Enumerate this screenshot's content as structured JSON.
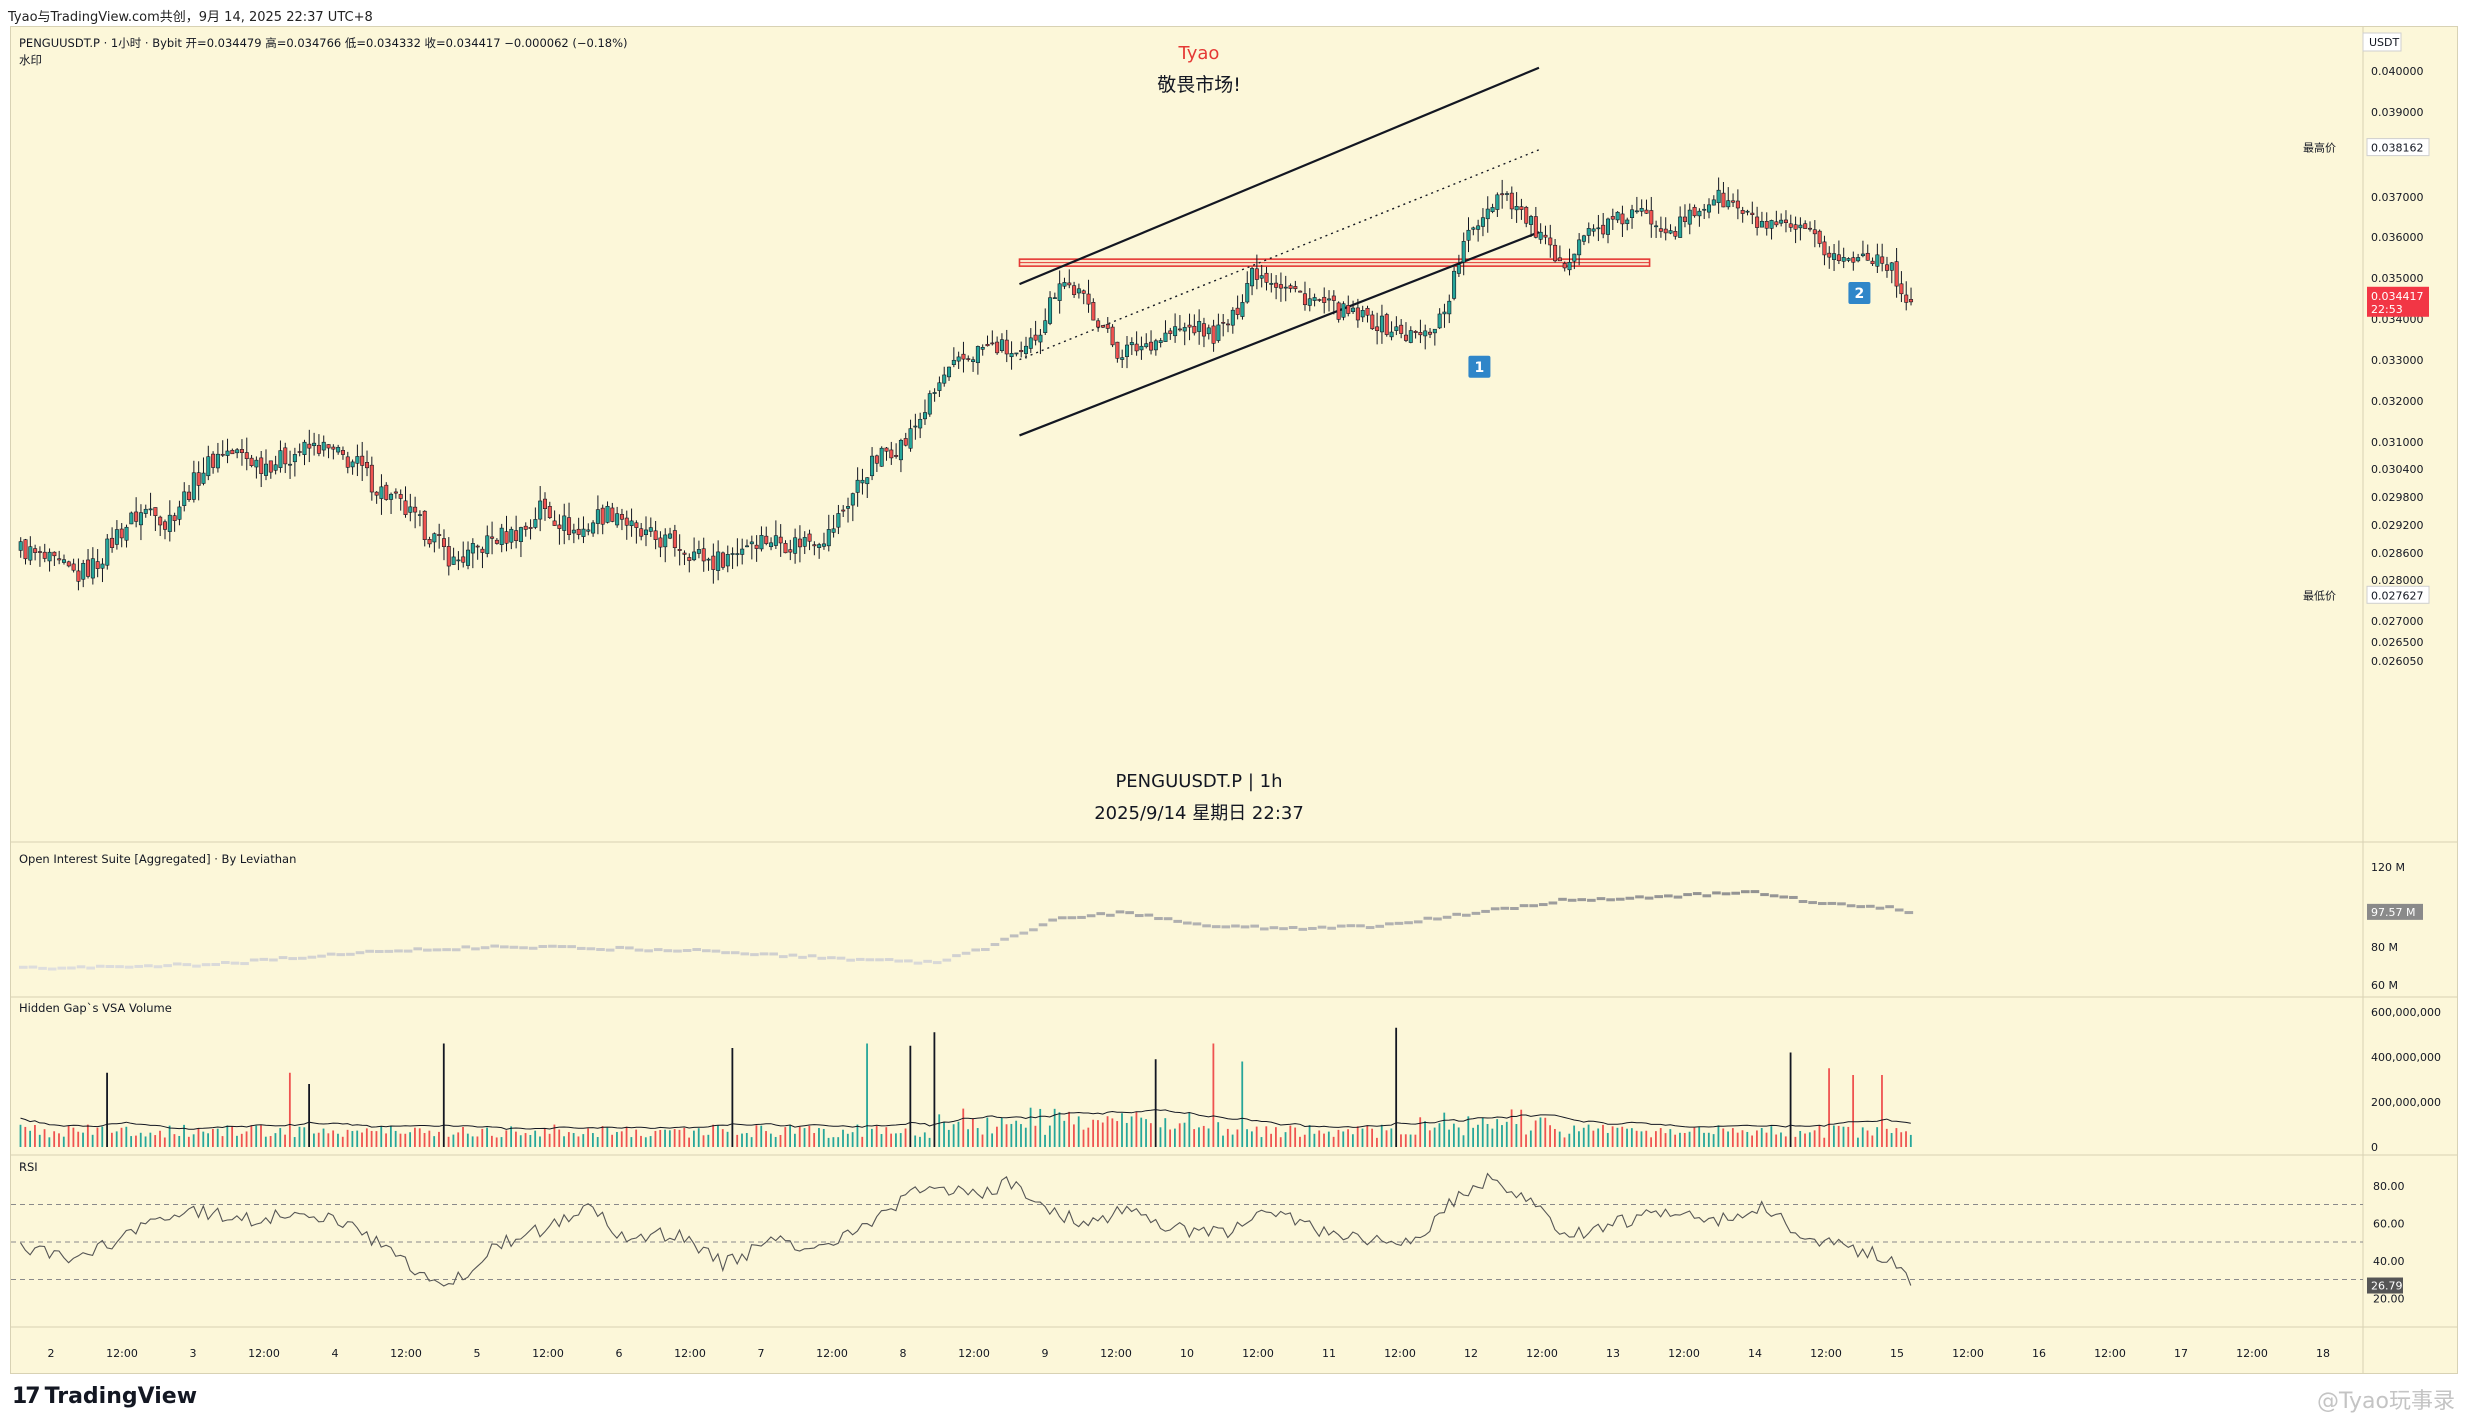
{
  "header": {
    "share_text": "Tyao⁠⁠与TradingView.com共创，9月 14, 2025 22:37 UTC+8"
  },
  "legend": {
    "symbol_line": "PENGUUSDT.P · 1小时 · Bybit  开=0.034479  高=0.034766  低=0.034332  收=0.034417  −0.000062 (−0.18%)",
    "watermark_label": "水印",
    "author": "Tyao",
    "slogan": "敬畏市场!",
    "center_title": "PENGUUSDT.P | 1h",
    "center_date": "2025/9/14 星期日 22:37"
  },
  "colors": {
    "up": "#26a69a",
    "down": "#ef5350",
    "background": "#fcf7d9",
    "zone_red": "#e53935",
    "marker_blue": "#2f86c9",
    "price_tag_red": "#f23645"
  },
  "price_axis": {
    "unit": "USDT",
    "ticks": [
      "0.040000",
      "0.039000",
      "0.037000",
      "0.036000",
      "0.035000",
      "0.034000",
      "0.033000",
      "0.032000",
      "0.031000",
      "0.030400",
      "0.029800",
      "0.029200",
      "0.028600",
      "0.028000",
      "0.027000",
      "0.026500",
      "0.026050"
    ],
    "high_label": "最高价",
    "high_value": "0.038162",
    "low_label": "最低价",
    "low_value": "0.027627",
    "last_price": "0.034417",
    "countdown": "22:53"
  },
  "markers": [
    {
      "label": "1"
    },
    {
      "label": "2"
    }
  ],
  "panes": {
    "oi": {
      "title": "Open Interest Suite [Aggregated] · By Leviathan",
      "ticks": [
        "120 M",
        "80 M",
        "60 M"
      ],
      "current": "97.57 M"
    },
    "volume": {
      "title": "Hidden Gap`s VSA Volume",
      "ticks": [
        "600,000,000",
        "400,000,000",
        "200,000,000",
        "0"
      ]
    },
    "rsi": {
      "title": "RSI",
      "ticks": [
        "80.00",
        "60.00",
        "40.00",
        "20.00"
      ],
      "current": "26.79"
    }
  },
  "time_axis": {
    "labels": [
      "2",
      "12:00",
      "3",
      "12:00",
      "4",
      "12:00",
      "5",
      "12:00",
      "6",
      "12:00",
      "7",
      "12:00",
      "8",
      "12:00",
      "9",
      "12:00",
      "10",
      "12:00",
      "11",
      "12:00",
      "12",
      "12:00",
      "13",
      "12:00",
      "14",
      "12:00",
      "15",
      "12:00",
      "16",
      "12:00",
      "17",
      "12:00",
      "18"
    ]
  },
  "footer": {
    "brand": "TradingView",
    "watermark": "@Tyao玩事录"
  },
  "chart_data": {
    "type": "candlestick",
    "symbol": "PENGUUSDT.P",
    "interval": "1h",
    "exchange": "Bybit",
    "ohlc_last": {
      "open": 0.034479,
      "high": 0.034766,
      "low": 0.034332,
      "close": 0.034417,
      "change": -6.2e-05,
      "change_pct": -0.18
    },
    "close_path": [
      [
        0,
        0.0287
      ],
      [
        4,
        0.0285
      ],
      [
        8,
        0.0283
      ],
      [
        12,
        0.0281
      ],
      [
        16,
        0.0284
      ],
      [
        20,
        0.029
      ],
      [
        24,
        0.0294
      ],
      [
        28,
        0.0296
      ],
      [
        30,
        0.0292
      ],
      [
        34,
        0.0298
      ],
      [
        38,
        0.0304
      ],
      [
        42,
        0.0308
      ],
      [
        46,
        0.0307
      ],
      [
        50,
        0.0305
      ],
      [
        54,
        0.0306
      ],
      [
        58,
        0.0308
      ],
      [
        62,
        0.0309
      ],
      [
        66,
        0.0307
      ],
      [
        70,
        0.0305
      ],
      [
        74,
        0.03
      ],
      [
        78,
        0.0297
      ],
      [
        82,
        0.0293
      ],
      [
        86,
        0.0289
      ],
      [
        90,
        0.0284
      ],
      [
        94,
        0.0286
      ],
      [
        98,
        0.0289
      ],
      [
        102,
        0.029
      ],
      [
        106,
        0.0292
      ],
      [
        108,
        0.0296
      ],
      [
        112,
        0.0293
      ],
      [
        116,
        0.029
      ],
      [
        120,
        0.0294
      ],
      [
        124,
        0.0295
      ],
      [
        128,
        0.029
      ],
      [
        132,
        0.0289
      ],
      [
        136,
        0.0288
      ],
      [
        140,
        0.0286
      ],
      [
        144,
        0.0284
      ],
      [
        148,
        0.0286
      ],
      [
        152,
        0.0289
      ],
      [
        156,
        0.0289
      ],
      [
        160,
        0.0288
      ],
      [
        164,
        0.0289
      ],
      [
        168,
        0.029
      ],
      [
        172,
        0.0297
      ],
      [
        176,
        0.0304
      ],
      [
        180,
        0.0308
      ],
      [
        184,
        0.031
      ],
      [
        188,
        0.0318
      ],
      [
        192,
        0.0326
      ],
      [
        196,
        0.033
      ],
      [
        200,
        0.0333
      ],
      [
        204,
        0.0333
      ],
      [
        208,
        0.033
      ],
      [
        212,
        0.0338
      ],
      [
        216,
        0.035
      ],
      [
        220,
        0.0346
      ],
      [
        224,
        0.034
      ],
      [
        228,
        0.0332
      ],
      [
        232,
        0.0333
      ],
      [
        236,
        0.0335
      ],
      [
        240,
        0.0337
      ],
      [
        244,
        0.0338
      ],
      [
        248,
        0.0336
      ],
      [
        252,
        0.034
      ],
      [
        256,
        0.0352
      ],
      [
        260,
        0.035
      ],
      [
        264,
        0.0347
      ],
      [
        268,
        0.0345
      ],
      [
        272,
        0.0343
      ],
      [
        276,
        0.0341
      ],
      [
        280,
        0.034
      ],
      [
        284,
        0.0338
      ],
      [
        288,
        0.0336
      ],
      [
        292,
        0.0336
      ],
      [
        296,
        0.0342
      ],
      [
        300,
        0.0358
      ],
      [
        304,
        0.0366
      ],
      [
        308,
        0.0372
      ],
      [
        312,
        0.0366
      ],
      [
        316,
        0.036
      ],
      [
        320,
        0.0352
      ],
      [
        324,
        0.036
      ],
      [
        328,
        0.0362
      ],
      [
        332,
        0.0364
      ],
      [
        336,
        0.0366
      ],
      [
        340,
        0.0364
      ],
      [
        344,
        0.0362
      ],
      [
        348,
        0.0366
      ],
      [
        352,
        0.037
      ],
      [
        356,
        0.0368
      ],
      [
        360,
        0.0364
      ],
      [
        364,
        0.0362
      ],
      [
        368,
        0.0362
      ],
      [
        372,
        0.036
      ],
      [
        376,
        0.0356
      ],
      [
        380,
        0.0354
      ],
      [
        384,
        0.0356
      ],
      [
        388,
        0.0354
      ],
      [
        390,
        0.0349
      ],
      [
        393,
        0.03442
      ]
    ],
    "channel": {
      "upper": [
        [
          0,
          0.03485
        ],
        [
          108,
          0.04008
        ]
      ],
      "lower": [
        [
          0,
          0.03116
        ],
        [
          108,
          0.03612
        ]
      ],
      "midline": [
        [
          0,
          0.03301
        ],
        [
          108,
          0.03811
        ]
      ],
      "x_unit": "hours from 2025-09-08 18:00"
    },
    "resistance_zone": [
      0.03532,
      0.03546
    ],
    "open_interest": {
      "unit": "M",
      "current": 97.57,
      "range": [
        60,
        125
      ],
      "path": [
        [
          0,
          69
        ],
        [
          40,
          71
        ],
        [
          70,
          77
        ],
        [
          100,
          80
        ],
        [
          140,
          78
        ],
        [
          170,
          74
        ],
        [
          190,
          72
        ],
        [
          200,
          79
        ],
        [
          215,
          94
        ],
        [
          230,
          97
        ],
        [
          245,
          91
        ],
        [
          260,
          89
        ],
        [
          280,
          90
        ],
        [
          300,
          96
        ],
        [
          320,
          103
        ],
        [
          340,
          105
        ],
        [
          360,
          107
        ],
        [
          375,
          101
        ],
        [
          390,
          99
        ],
        [
          393,
          95
        ]
      ]
    },
    "volume": {
      "unit": "USDT",
      "max": 600000000
    },
    "rsi": {
      "period": 14,
      "current": 26.79,
      "levels": [
        70,
        50,
        30
      ],
      "path": [
        [
          0,
          48
        ],
        [
          10,
          40
        ],
        [
          20,
          50
        ],
        [
          34,
          68
        ],
        [
          46,
          62
        ],
        [
          60,
          66
        ],
        [
          70,
          58
        ],
        [
          80,
          38
        ],
        [
          88,
          24
        ],
        [
          100,
          50
        ],
        [
          110,
          58
        ],
        [
          118,
          70
        ],
        [
          126,
          50
        ],
        [
          136,
          55
        ],
        [
          146,
          38
        ],
        [
          156,
          50
        ],
        [
          166,
          48
        ],
        [
          176,
          58
        ],
        [
          188,
          80
        ],
        [
          200,
          75
        ],
        [
          206,
          82
        ],
        [
          214,
          68
        ],
        [
          222,
          58
        ],
        [
          230,
          70
        ],
        [
          238,
          58
        ],
        [
          250,
          54
        ],
        [
          260,
          66
        ],
        [
          270,
          56
        ],
        [
          280,
          52
        ],
        [
          290,
          50
        ],
        [
          298,
          72
        ],
        [
          306,
          84
        ],
        [
          314,
          70
        ],
        [
          322,
          52
        ],
        [
          330,
          60
        ],
        [
          340,
          64
        ],
        [
          352,
          62
        ],
        [
          362,
          68
        ],
        [
          372,
          52
        ],
        [
          380,
          46
        ],
        [
          388,
          42
        ],
        [
          393,
          27
        ]
      ]
    }
  }
}
